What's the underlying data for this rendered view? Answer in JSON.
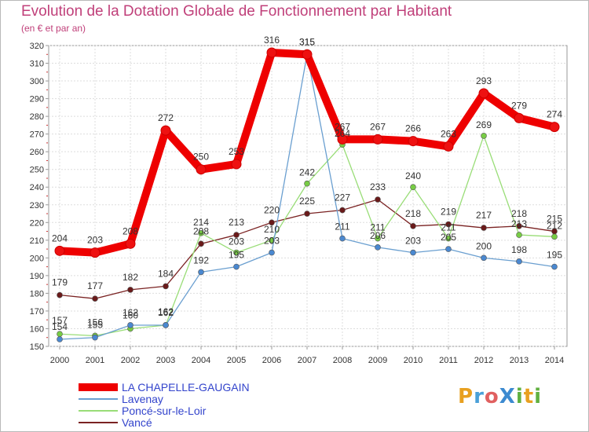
{
  "header": {
    "title": "Evolution de la Dotation Globale de Fonctionnement par Habitant",
    "subtitle": "(en € et par an)"
  },
  "logo": {
    "text": "ProXiti",
    "letters": [
      "P",
      "r",
      "o",
      "X",
      "i",
      "t",
      "i"
    ],
    "colors": [
      "#e8a020",
      "#4aa0d8",
      "#e06060",
      "#3c8ad0",
      "#60b040",
      "#e8a020",
      "#60b040"
    ]
  },
  "chart_data": {
    "type": "line",
    "title": "Evolution de la Dotation Globale de Fonctionnement par Habitant",
    "subtitle": "(en € et par an)",
    "x": [
      "2000",
      "2001",
      "2002",
      "2003",
      "2004",
      "2005",
      "2006",
      "2007",
      "2008",
      "2009",
      "2010",
      "2011",
      "2012",
      "2013",
      "2014"
    ],
    "ylim": [
      150,
      320
    ],
    "yticks": [
      150,
      160,
      170,
      180,
      190,
      200,
      210,
      220,
      230,
      240,
      250,
      260,
      270,
      280,
      290,
      300,
      310,
      320
    ],
    "grid": true,
    "legend_position": "bottom-left",
    "series": [
      {
        "name": "LA CHAPELLE-GAUGAIN",
        "color": "#ee0000",
        "marker_color": "#ee1111",
        "values": [
          204,
          203,
          208,
          272,
          250,
          253,
          316,
          315,
          267,
          267,
          266,
          263,
          293,
          279,
          274
        ]
      },
      {
        "name": "Lavenay",
        "color": "#6a9fd0",
        "marker_color": "#4a88d0",
        "values": [
          154,
          155,
          162,
          162,
          192,
          195,
          203,
          315,
          211,
          206,
          203,
          205,
          200,
          198,
          195
        ]
      },
      {
        "name": "Poncé-sur-le-Loir",
        "color": "#99dd77",
        "marker_color": "#77cc44",
        "values": [
          157,
          156,
          160,
          162,
          214,
          203,
          210,
          242,
          264,
          211,
          240,
          211,
          269,
          213,
          212
        ]
      },
      {
        "name": "Vancé",
        "color": "#7a2222",
        "marker_color": "#6a1a1a",
        "values": [
          179,
          177,
          182,
          184,
          208,
          213,
          220,
          225,
          227,
          233,
          218,
          219,
          217,
          218,
          215
        ]
      }
    ]
  }
}
